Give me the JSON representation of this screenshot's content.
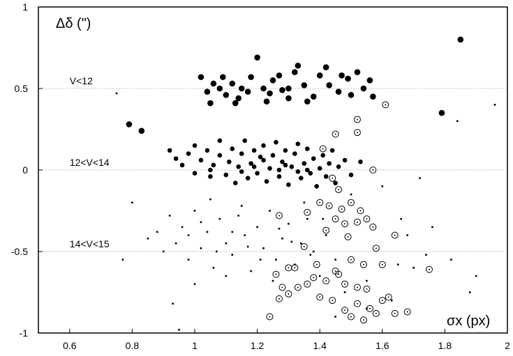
{
  "chart_data": {
    "type": "scatter",
    "title": "",
    "xlabel": "σx (px)",
    "ylabel": "Δδ (\")",
    "xlim": [
      0.5,
      2.0
    ],
    "ylim": [
      -1.0,
      1.0
    ],
    "x_ticks": [
      0.6,
      0.8,
      1.0,
      1.2,
      1.4,
      1.6,
      1.8,
      2.0
    ],
    "x_tick_labels": [
      "0.6",
      "0.8",
      "1",
      "1.2",
      "1.4",
      "1.6",
      "1.8",
      "2"
    ],
    "y_ticks": [
      -1.0,
      -0.5,
      0.0,
      0.5,
      1.0
    ],
    "y_tick_labels": [
      "-1",
      "-0.5",
      "0",
      "0.5",
      "1"
    ],
    "grid": "horizontal dotted lines at -0.5, 0 and 0.5",
    "legend": "none",
    "annotations": [
      {
        "text": "V<12",
        "x": 0.6,
        "y": 0.5
      },
      {
        "text": "12<V<14",
        "x": 0.6,
        "y": 0.0
      },
      {
        "text": "14<V<15",
        "x": 0.6,
        "y": -0.5
      }
    ],
    "series": [
      {
        "group": "V<12",
        "marker": "large filled circle",
        "points": [
          [
            0.79,
            0.28
          ],
          [
            0.83,
            0.24
          ],
          [
            1.02,
            0.57
          ],
          [
            1.04,
            0.48
          ],
          [
            1.06,
            0.53
          ],
          [
            1.08,
            0.5
          ],
          [
            1.09,
            0.57
          ],
          [
            1.1,
            0.46
          ],
          [
            1.12,
            0.53
          ],
          [
            1.14,
            0.44
          ],
          [
            1.15,
            0.5
          ],
          [
            1.18,
            0.57
          ],
          [
            1.2,
            0.69
          ],
          [
            1.22,
            0.5
          ],
          [
            1.24,
            0.47
          ],
          [
            1.25,
            0.55
          ],
          [
            1.27,
            0.58
          ],
          [
            1.28,
            0.49
          ],
          [
            1.3,
            0.44
          ],
          [
            1.32,
            0.6
          ],
          [
            1.33,
            0.64
          ],
          [
            1.35,
            0.52
          ],
          [
            1.38,
            0.45
          ],
          [
            1.4,
            0.58
          ],
          [
            1.43,
            0.52
          ],
          [
            1.47,
            0.58
          ],
          [
            1.49,
            0.56
          ],
          [
            1.52,
            0.6
          ],
          [
            1.54,
            0.5
          ],
          [
            1.56,
            0.55
          ],
          [
            1.57,
            0.45
          ],
          [
            1.79,
            0.35
          ],
          [
            1.85,
            0.8
          ],
          [
            1.05,
            0.41
          ],
          [
            1.13,
            0.41
          ],
          [
            1.23,
            0.42
          ],
          [
            1.36,
            0.42
          ],
          [
            1.46,
            0.48
          ],
          [
            1.3,
            0.5
          ],
          [
            1.17,
            0.48
          ],
          [
            1.42,
            0.63
          ],
          [
            1.5,
            0.46
          ]
        ]
      },
      {
        "group": "12<V<14",
        "marker": "filled circle",
        "points": [
          [
            0.92,
            0.12
          ],
          [
            0.94,
            0.07
          ],
          [
            0.96,
            0.03
          ],
          [
            0.98,
            0.1
          ],
          [
            1.0,
            -0.02
          ],
          [
            1.0,
            0.15
          ],
          [
            1.02,
            0.06
          ],
          [
            1.04,
            0.12
          ],
          [
            1.05,
            -0.04
          ],
          [
            1.06,
            0.03
          ],
          [
            1.08,
            0.09
          ],
          [
            1.08,
            0.18
          ],
          [
            1.1,
            -0.03
          ],
          [
            1.11,
            0.05
          ],
          [
            1.12,
            0.13
          ],
          [
            1.13,
            -0.08
          ],
          [
            1.14,
            0.02
          ],
          [
            1.15,
            0.1
          ],
          [
            1.16,
            0.18
          ],
          [
            1.17,
            -0.05
          ],
          [
            1.18,
            0.04
          ],
          [
            1.19,
            0.12
          ],
          [
            1.2,
            -0.02
          ],
          [
            1.21,
            0.08
          ],
          [
            1.22,
            0.15
          ],
          [
            1.23,
            -0.07
          ],
          [
            1.24,
            0.01
          ],
          [
            1.25,
            0.09
          ],
          [
            1.26,
            0.17
          ],
          [
            1.27,
            -0.04
          ],
          [
            1.28,
            0.05
          ],
          [
            1.29,
            0.12
          ],
          [
            1.3,
            -0.09
          ],
          [
            1.31,
            0.02
          ],
          [
            1.32,
            0.1
          ],
          [
            1.33,
            0.16
          ],
          [
            1.34,
            -0.05
          ],
          [
            1.35,
            0.04
          ],
          [
            1.36,
            0.13
          ],
          [
            1.37,
            -0.02
          ],
          [
            1.38,
            0.07
          ],
          [
            1.39,
            -0.1
          ],
          [
            1.4,
            0.01
          ],
          [
            1.41,
            0.09
          ],
          [
            1.42,
            -0.04
          ],
          [
            1.43,
            0.04
          ],
          [
            1.44,
            0.12
          ],
          [
            1.45,
            -0.08
          ],
          [
            1.46,
            0.02
          ],
          [
            1.48,
            0.06
          ],
          [
            1.5,
            -0.03
          ],
          [
            1.53,
            0.05
          ],
          [
            1.05,
            0.0
          ],
          [
            1.19,
            0.02
          ],
          [
            1.27,
            0.0
          ],
          [
            1.33,
            -0.01
          ],
          [
            1.15,
            -0.01
          ],
          [
            1.22,
            0.06
          ],
          [
            1.36,
            0.0
          ],
          [
            1.29,
            0.03
          ]
        ]
      },
      {
        "group": "14<V<15",
        "marker": "small square",
        "points": [
          [
            0.75,
            0.47
          ],
          [
            0.77,
            -0.55
          ],
          [
            0.8,
            -0.2
          ],
          [
            0.85,
            -0.42
          ],
          [
            0.88,
            -0.38
          ],
          [
            0.9,
            -0.5
          ],
          [
            0.92,
            -0.28
          ],
          [
            0.94,
            -0.45
          ],
          [
            0.96,
            -0.35
          ],
          [
            0.98,
            -0.55
          ],
          [
            1.0,
            -0.25
          ],
          [
            1.02,
            -0.48
          ],
          [
            1.04,
            -0.38
          ],
          [
            1.06,
            -0.6
          ],
          [
            1.08,
            -0.3
          ],
          [
            1.1,
            -0.45
          ],
          [
            1.12,
            -0.52
          ],
          [
            1.14,
            -0.28
          ],
          [
            1.16,
            -0.4
          ],
          [
            1.18,
            -0.62
          ],
          [
            1.2,
            -0.35
          ],
          [
            1.22,
            -0.48
          ],
          [
            1.24,
            -0.25
          ],
          [
            1.26,
            -0.55
          ],
          [
            1.28,
            -0.42
          ],
          [
            1.3,
            -0.33
          ],
          [
            1.32,
            -0.58
          ],
          [
            1.34,
            -0.45
          ],
          [
            1.36,
            -0.3
          ],
          [
            1.38,
            -0.5
          ],
          [
            1.4,
            -0.65
          ],
          [
            1.42,
            -0.4
          ],
          [
            1.45,
            -0.55
          ],
          [
            1.48,
            -0.75
          ],
          [
            1.55,
            -0.68
          ],
          [
            1.6,
            -0.1
          ],
          [
            1.63,
            -0.8
          ],
          [
            1.66,
            -0.3
          ],
          [
            1.7,
            -0.6
          ],
          [
            1.72,
            -0.05
          ],
          [
            1.76,
            -0.35
          ],
          [
            1.82,
            -0.55
          ],
          [
            1.88,
            -0.75
          ],
          [
            1.96,
            0.4
          ],
          [
            0.93,
            -0.82
          ],
          [
            0.95,
            -0.98
          ],
          [
            1.0,
            -0.7
          ],
          [
            1.05,
            -0.18
          ],
          [
            1.1,
            -0.65
          ],
          [
            1.15,
            -0.22
          ],
          [
            1.25,
            -0.68
          ],
          [
            1.35,
            -0.2
          ],
          [
            1.45,
            -0.9
          ],
          [
            1.5,
            -0.15
          ],
          [
            1.55,
            -0.85
          ],
          [
            1.65,
            -0.58
          ],
          [
            1.84,
            0.3
          ],
          [
            1.68,
            -0.4
          ],
          [
            1.74,
            -0.52
          ],
          [
            1.9,
            -0.65
          ],
          [
            0.98,
            -0.4
          ],
          [
            1.02,
            -0.32
          ],
          [
            1.07,
            -0.5
          ],
          [
            1.12,
            -0.38
          ],
          [
            1.17,
            -0.47
          ],
          [
            1.21,
            -0.55
          ],
          [
            1.27,
            -0.36
          ],
          [
            1.31,
            -0.44
          ],
          [
            1.37,
            -0.52
          ],
          [
            1.41,
            -0.3
          ]
        ]
      },
      {
        "group": "open circles",
        "marker": "open circle",
        "points": [
          [
            1.61,
            0.4
          ],
          [
            1.52,
            0.31
          ],
          [
            1.45,
            0.22
          ],
          [
            1.52,
            0.23
          ],
          [
            1.41,
            0.13
          ],
          [
            1.57,
            0.0
          ],
          [
            1.44,
            -0.05
          ],
          [
            1.46,
            -0.12
          ],
          [
            1.4,
            -0.2
          ],
          [
            1.43,
            -0.22
          ],
          [
            1.47,
            -0.24
          ],
          [
            1.5,
            -0.2
          ],
          [
            1.53,
            -0.25
          ],
          [
            1.45,
            -0.3
          ],
          [
            1.48,
            -0.33
          ],
          [
            1.52,
            -0.32
          ],
          [
            1.55,
            -0.3
          ],
          [
            1.57,
            -0.35
          ],
          [
            1.42,
            -0.37
          ],
          [
            1.49,
            -0.41
          ],
          [
            1.64,
            -0.4
          ],
          [
            1.58,
            -0.48
          ],
          [
            1.5,
            -0.55
          ],
          [
            1.54,
            -0.58
          ],
          [
            1.45,
            -0.62
          ],
          [
            1.6,
            -0.58
          ],
          [
            1.35,
            -0.47
          ],
          [
            1.39,
            -0.58
          ],
          [
            1.42,
            -0.68
          ],
          [
            1.48,
            -0.7
          ],
          [
            1.52,
            -0.72
          ],
          [
            1.55,
            -0.73
          ],
          [
            1.36,
            -0.7
          ],
          [
            1.33,
            -0.72
          ],
          [
            1.3,
            -0.76
          ],
          [
            1.28,
            -0.72
          ],
          [
            1.27,
            -0.28
          ],
          [
            1.27,
            -0.79
          ],
          [
            1.3,
            -0.6
          ],
          [
            1.4,
            -0.78
          ],
          [
            1.44,
            -0.8
          ],
          [
            1.48,
            -0.86
          ],
          [
            1.52,
            -0.82
          ],
          [
            1.56,
            -0.85
          ],
          [
            1.6,
            -0.8
          ],
          [
            1.58,
            -0.88
          ],
          [
            1.64,
            -0.88
          ],
          [
            1.68,
            -0.87
          ],
          [
            1.75,
            -0.61
          ],
          [
            1.24,
            -0.9
          ],
          [
            1.38,
            -0.66
          ],
          [
            1.46,
            -0.64
          ],
          [
            1.5,
            -0.9
          ],
          [
            1.54,
            -0.92
          ],
          [
            1.62,
            -0.78
          ],
          [
            1.32,
            -0.6
          ],
          [
            1.26,
            -0.64
          ],
          [
            1.36,
            -0.26
          ]
        ]
      }
    ]
  }
}
